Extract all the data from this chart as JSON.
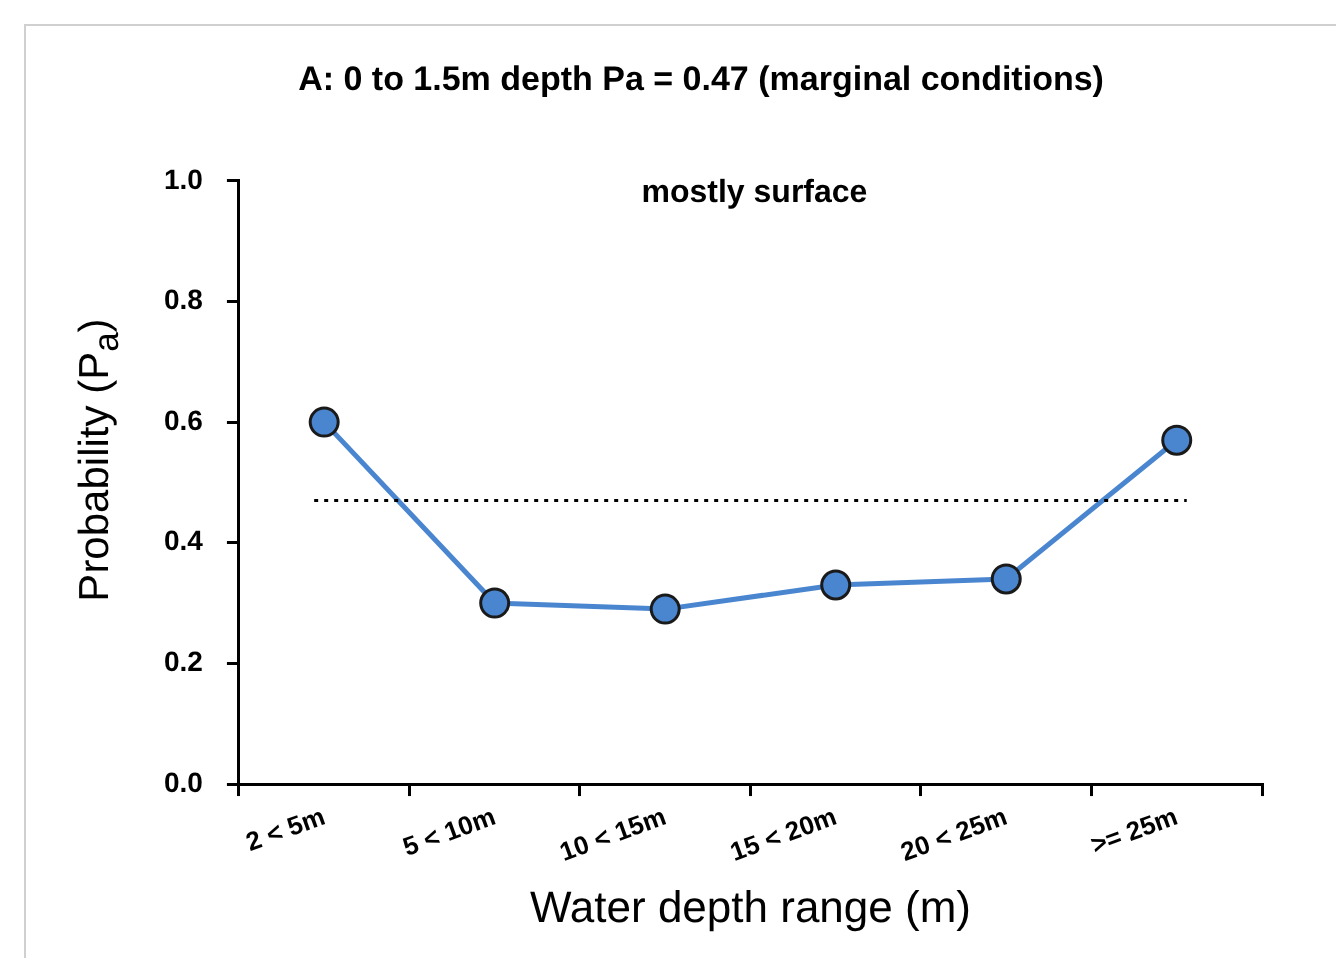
{
  "chart_data": {
    "type": "line",
    "title": "A: 0 to 1.5m depth Pa = 0.47 (marginal conditions)",
    "annotations": [
      "mostly surface"
    ],
    "xlabel": "Water depth range (m)",
    "ylabel": "Probability (P$_{a}$)",
    "categories": [
      "2 < 5m",
      "5 < 10m",
      "10 < 15m",
      "15 < 20m",
      "20 < 25m",
      ">= 25m"
    ],
    "series": [
      {
        "color": "#4a86d0",
        "values": [
          0.6,
          0.3,
          0.29,
          0.33,
          0.34,
          0.57
        ]
      }
    ],
    "ylim": [
      0,
      1
    ],
    "yticks": [
      {
        "value": 0,
        "label": "0.0"
      },
      {
        "value": 0.2,
        "label": "0.2"
      },
      {
        "value": 0.4,
        "label": "0.4"
      },
      {
        "value": 0.6,
        "label": "0.6"
      },
      {
        "value": 0.8,
        "label": "0.8"
      },
      {
        "value": 1,
        "label": "1.0"
      }
    ],
    "ref_lines": [
      {
        "axis": "y",
        "value": 0.47,
        "color": "#000000",
        "line_style": "dotted"
      }
    ],
    "grid": false,
    "legend": false,
    "marker": "circle",
    "line_style": "solid"
  }
}
